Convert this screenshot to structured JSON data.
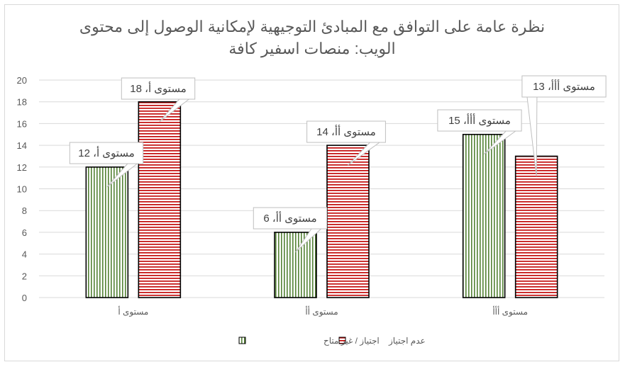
{
  "colors": {
    "series1_stripe": "#548235",
    "series2_stripe": "#c00000",
    "gridline": "#d9d9d9",
    "axis_text": "#595959",
    "bar_outline": "#000000",
    "callout_border": "#bfbfbf"
  },
  "chart_data": {
    "type": "bar",
    "title_lines": [
      "نظرة عامة على التوافق مع المبادئ التوجيهية لإمكانية الوصول إلى محتوى",
      "الويب: منصات اسفير كافة"
    ],
    "categories": [
      "مستوى أ",
      "مستوى أأ",
      "مستوى أأأ"
    ],
    "series": [
      {
        "name": "اجتياز / غير متاح",
        "values": [
          12,
          6,
          15
        ],
        "pattern": "vertical-stripes",
        "labels": [
          "مستوى أ، 12",
          "مستوى أأ، 6",
          "مستوى أأأ، 15"
        ]
      },
      {
        "name": "عدم اجتياز",
        "values": [
          18,
          14,
          13
        ],
        "pattern": "horizontal-stripes",
        "labels": [
          "مستوى أ، 18",
          "مستوى أأ، 14",
          "مستوى أأأ، 13"
        ]
      }
    ],
    "ylim": [
      0,
      20
    ],
    "yticks": [
      0,
      2,
      4,
      6,
      8,
      10,
      12,
      14,
      16,
      18,
      20
    ],
    "grid": true,
    "legend_position": "bottom"
  }
}
